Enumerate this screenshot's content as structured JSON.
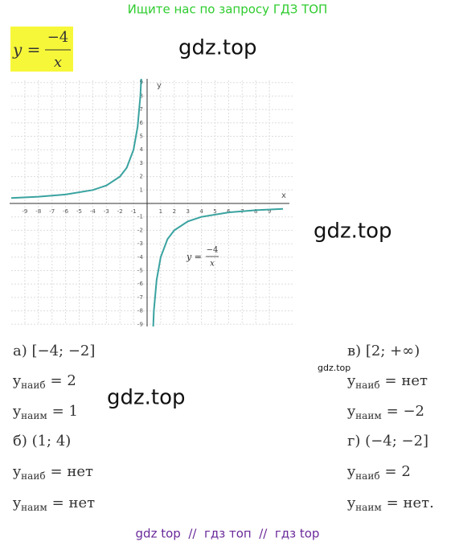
{
  "header": {
    "banner": "Ищите нас по запросу ГДЗ ТОП",
    "formula": {
      "lhs": "y =",
      "numerator": "−4",
      "denominator": "x"
    }
  },
  "watermarks": [
    "gdz.top",
    "gdz.top",
    "gdz.top",
    "gdz.top"
  ],
  "graph": {
    "x_label": "x",
    "y_label": "y",
    "xticks": [
      -9,
      -8,
      -7,
      -6,
      -5,
      -4,
      -3,
      -2,
      -1,
      1,
      2,
      3,
      4,
      5,
      6,
      7,
      8,
      9
    ],
    "yticks": [
      9,
      8,
      7,
      6,
      5,
      4,
      3,
      2,
      1,
      -1,
      -2,
      -3,
      -4,
      -5,
      -6,
      -7,
      -8,
      -9
    ],
    "formula": {
      "lhs": "y =",
      "numerator": "−4",
      "denominator": "x"
    }
  },
  "answers": {
    "left": [
      {
        "heading": "а) [−4; −2]"
      },
      {
        "var": "y",
        "sub": "наиб",
        "rhs": "= 2"
      },
      {
        "var": "y",
        "sub": "наим",
        "rhs": "= 1"
      },
      {
        "heading": "б) (1; 4)"
      },
      {
        "var": "y",
        "sub": "наиб",
        "rhs": "= нет"
      },
      {
        "var": "y",
        "sub": "наим",
        "rhs": "= нет"
      }
    ],
    "right": [
      {
        "heading": "в) [2; +∞)"
      },
      {
        "var": "y",
        "sub": "наиб",
        "rhs": "= нет"
      },
      {
        "var": "y",
        "sub": "наим",
        "rhs": "= −2"
      },
      {
        "heading": "г) (−4; −2]"
      },
      {
        "var": "y",
        "sub": "наиб",
        "rhs": "= 2"
      },
      {
        "var": "y",
        "sub": "наим",
        "rhs": "= нет."
      }
    ]
  },
  "footer": "gdz top  //  гдз топ  //  гдз top"
}
